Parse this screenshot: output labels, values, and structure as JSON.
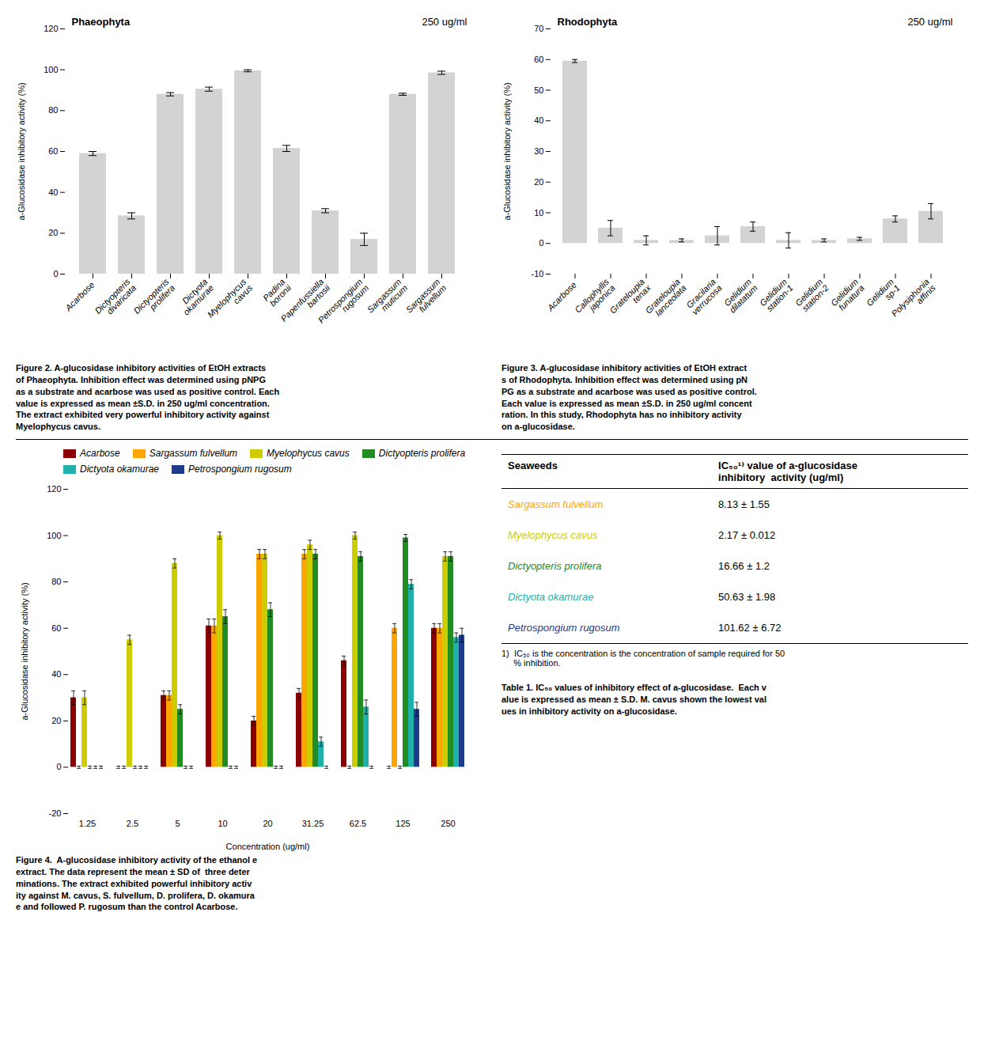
{
  "chart_data": [
    {
      "type": "bar",
      "title": "Phaeophyta",
      "subtitle": "250 ug/ml",
      "categories": [
        "Acarbose",
        "Dictyopteris\ndivaricata",
        "Dictyopteris\nprolifera",
        "Dictyota\nokamurae",
        "Myelophycus\ncavus",
        "Padina\nboronii",
        "Papenfussiella\nbartosii",
        "Petrospongium\nrugosum",
        "Sargassum\nmuticum",
        "Sargassum\nfulvellum"
      ],
      "values": [
        59.0,
        28.5,
        88.0,
        90.5,
        99.5,
        61.5,
        31.0,
        17.0,
        88.0,
        98.5
      ],
      "errors": [
        1.0,
        1.5,
        0.8,
        1.0,
        0.5,
        1.5,
        1.0,
        3.0,
        0.5,
        0.8
      ],
      "color": "#d3d3d3",
      "ylabel": "a-Glucosidase inhibitory activity (%)",
      "ylim": [
        0,
        120
      ],
      "yticks": [
        0,
        20,
        40,
        60,
        80,
        100,
        120
      ],
      "caption": "Figure 2. A-glucosidase inhibitory activities of EtOH extracts\nof Phaeophyta. Inhibition effect was determined using pNPG\nas a substrate and acarbose was used as positive control. Each\nvalue is expressed as mean ±S.D. in 250 ug/ml concentration.\nThe extract exhibited very powerful inhibitory activity against\nMyelophycus cavus."
    },
    {
      "type": "bar",
      "title": "Rhodophyta",
      "subtitle": "250 ug/ml",
      "categories": [
        "Acarbose",
        "Callophyllis\njaponica",
        "Grateloupia\ntenax",
        "Grateloupia\nlanceolata",
        "Gracilaria\nverrucosa",
        "Gelidium\ndilatatum",
        "Gelidium\nstation-1",
        "Gelidium\nstation-2",
        "Gelidium\nfunatura",
        "Gelidium\nsp-1",
        "Polysiphonia\naffinis"
      ],
      "values": [
        59.5,
        5.0,
        1.0,
        1.0,
        2.5,
        5.5,
        1.0,
        1.0,
        1.5,
        8.0,
        10.5
      ],
      "errors": [
        0.5,
        2.5,
        1.5,
        0.5,
        3.0,
        1.5,
        2.5,
        0.5,
        0.5,
        1.0,
        2.5
      ],
      "color": "#d3d3d3",
      "ylabel": "a-Glucosidase inhibitory activity (%)",
      "ylim": [
        -10,
        70
      ],
      "yticks": [
        -10,
        0,
        10,
        20,
        30,
        40,
        50,
        60,
        70
      ],
      "caption": "Figure 3. A-glucosidase inhibitory activities of EtOH extract\ns of Rhodophyta. Inhibition effect was determined using pN\nPG as a substrate and acarbose was used as positive control.\nEach value is expressed as mean ±S.D. in 250 ug/ml concent\nration. In this study, Rhodophyta has no inhibitory activity\non a-glucosidase."
    },
    {
      "type": "bar",
      "categories": [
        "1.25",
        "2.5",
        "5",
        "10",
        "20",
        "31.25",
        "62.5",
        "125",
        "250"
      ],
      "xlabel": "Concentration (ug/ml)",
      "ylabel": "a-Glucosidase inhibitory activity (%)",
      "ylim": [
        -20,
        120
      ],
      "yticks": [
        -20,
        0,
        20,
        40,
        60,
        80,
        100,
        120
      ],
      "legend": "upper left",
      "series": [
        {
          "name": "Acarbose",
          "color": "#8B0000",
          "values": [
            30.0,
            0.0,
            31.0,
            61.0,
            20.0,
            32.0,
            46.0,
            0.0,
            60.0
          ],
          "errors": [
            3.0,
            0.5,
            2.0,
            3.0,
            2.0,
            2.0,
            2.0,
            0.5,
            2.0
          ]
        },
        {
          "name": "Sargassum fulvellum",
          "color": "#FFA500",
          "values": [
            0.0,
            0.0,
            31.0,
            61.0,
            92.0,
            92.0,
            0.0,
            60.0,
            60.0
          ],
          "errors": [
            0.5,
            0.5,
            2.0,
            3.0,
            2.0,
            2.0,
            0.5,
            2.0,
            2.0
          ]
        },
        {
          "name": "Myelophycus cavus",
          "color": "#CCCC00",
          "values": [
            30.0,
            55.0,
            88.0,
            100.0,
            92.0,
            96.0,
            100.0,
            0.0,
            91.0
          ],
          "errors": [
            3.0,
            2.0,
            2.0,
            1.5,
            2.0,
            2.0,
            1.5,
            0.5,
            2.0
          ]
        },
        {
          "name": "Dictyopteris prolifera",
          "color": "#228B22",
          "values": [
            0.0,
            0.0,
            25.0,
            65.0,
            68.0,
            92.0,
            91.0,
            99.0,
            91.0
          ],
          "errors": [
            0.5,
            0.5,
            2.0,
            3.0,
            3.0,
            2.0,
            2.0,
            1.5,
            2.0
          ]
        },
        {
          "name": "Dictyota okamurae",
          "color": "#20B2AA",
          "values": [
            0.0,
            0.0,
            0.0,
            0.0,
            0.0,
            11.0,
            26.0,
            79.0,
            56.0
          ],
          "errors": [
            0.5,
            0.5,
            0.5,
            0.5,
            0.5,
            2.0,
            3.0,
            2.0,
            2.0
          ]
        },
        {
          "name": "Petrospongium rugosum",
          "color": "#1E3A8A",
          "values": [
            0.0,
            0.0,
            0.0,
            0.0,
            0.0,
            0.0,
            0.0,
            25.0,
            57.0
          ],
          "errors": [
            0.5,
            0.5,
            0.5,
            0.5,
            0.5,
            0.5,
            0.5,
            3.0,
            3.0
          ]
        }
      ],
      "caption": "Figure 4.  A-glucosidase inhibitory activity of the ethanol e\nextract. The data represent the mean ± SD of  three deter\nminations. The extract exhibited powerful inhibitory activ\nity against M. cavus, S. fulvellum, D. prolifera, D. okamura\ne and followed P. rugosum than the control Acarbose."
    },
    {
      "type": "table",
      "columns": [
        "Seaweeds",
        "IC₅₀¹⁾ value of a-glucosidase\ninhibitory  activity (ug/ml)"
      ],
      "rows": [
        [
          "Sargassum fulvellum",
          "8.13 ± 1.55"
        ],
        [
          "Myelophycus cavus",
          "2.17 ± 0.012"
        ],
        [
          "Dictyopteris prolifera",
          "16.66 ± 1.2"
        ],
        [
          "Dictyota okamurae",
          "50.63 ± 1.98"
        ],
        [
          "Petrospongium rugosum",
          "101.62 ± 6.72"
        ]
      ],
      "colors": [
        "#FFA500",
        "#CCCC00",
        "#228B22",
        "#20B2AA",
        "#1E3A8A"
      ],
      "note": "1)  IC₅₀ is the concentration is the concentration of sample required for 50\n     % inhibition.",
      "caption": "Table 1. IC₅₀ values of inhibitory effect of a-glucosidase.  Each v\nalue is expressed as mean ± S.D. M. cavus shown the lowest val\nues in inhibitory activity on a-glucosidase."
    }
  ]
}
